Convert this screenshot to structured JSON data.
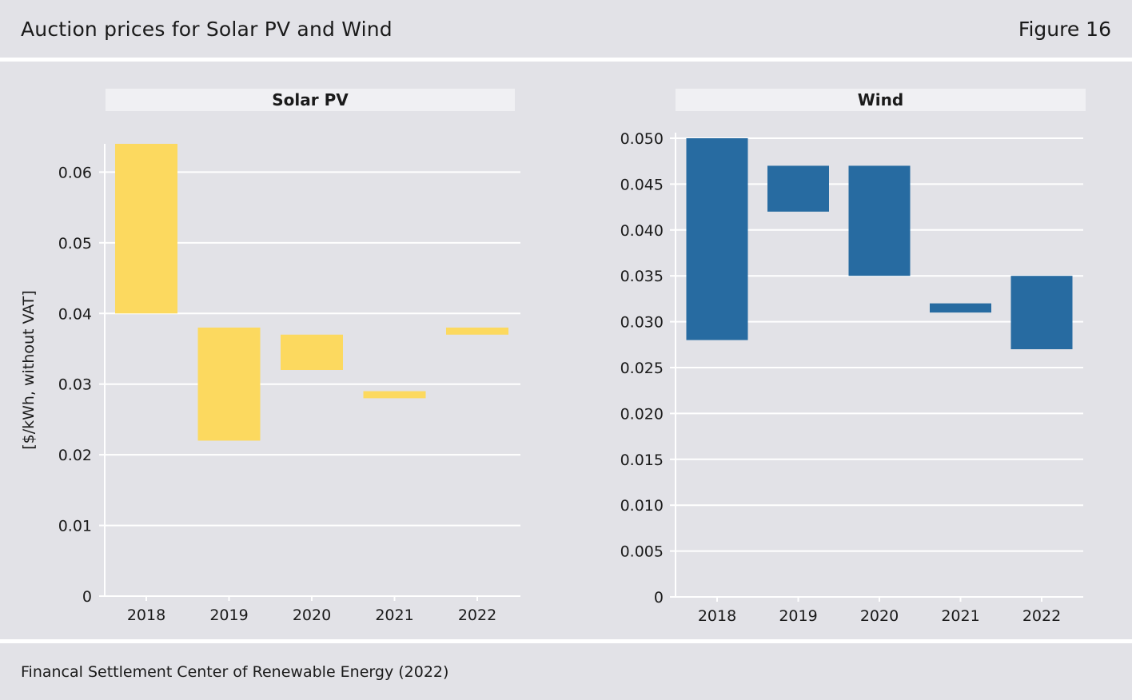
{
  "header": {
    "title": "Auction prices for Solar PV and Wind",
    "figure_label": "Figure 16"
  },
  "footer": {
    "source": "Financal Settlement Center of Renewable Energy (2022)"
  },
  "colors": {
    "solar": "#fcd95f",
    "wind": "#276ba1",
    "background": "#e2e2e7",
    "strip": "#f0f0f3",
    "grid": "#ffffff"
  },
  "chart_data": [
    {
      "type": "bar",
      "subtype": "floating-range",
      "title": "Solar PV",
      "ylabel": "[$/kWh, without VAT]",
      "categories": [
        "2018",
        "2019",
        "2020",
        "2021",
        "2022"
      ],
      "ranges": [
        [
          0.04,
          0.064
        ],
        [
          0.022,
          0.038
        ],
        [
          0.032,
          0.037
        ],
        [
          0.028,
          0.029
        ],
        [
          0.037,
          0.038
        ]
      ],
      "ylim": [
        0,
        0.064
      ],
      "yticks": [
        0,
        0.01,
        0.02,
        0.03,
        0.04,
        0.05,
        0.06
      ],
      "ytick_labels": [
        "0",
        "0.01",
        "0.02",
        "0.03",
        "0.04",
        "0.05",
        "0.06"
      ],
      "color": "#fcd95f",
      "grid": true
    },
    {
      "type": "bar",
      "subtype": "floating-range",
      "title": "Wind",
      "categories": [
        "2018",
        "2019",
        "2020",
        "2021",
        "2022"
      ],
      "ranges": [
        [
          0.028,
          0.05
        ],
        [
          0.042,
          0.047
        ],
        [
          0.035,
          0.047
        ],
        [
          0.031,
          0.032
        ],
        [
          0.027,
          0.035
        ]
      ],
      "ylim": [
        0,
        0.05
      ],
      "yticks": [
        0,
        0.005,
        0.01,
        0.015,
        0.02,
        0.025,
        0.03,
        0.035,
        0.04,
        0.045,
        0.05
      ],
      "ytick_labels": [
        "0",
        "0.005",
        "0.010",
        "0.015",
        "0.020",
        "0.025",
        "0.030",
        "0.035",
        "0.040",
        "0.045",
        "0.050"
      ],
      "color": "#276ba1",
      "grid": true
    }
  ]
}
